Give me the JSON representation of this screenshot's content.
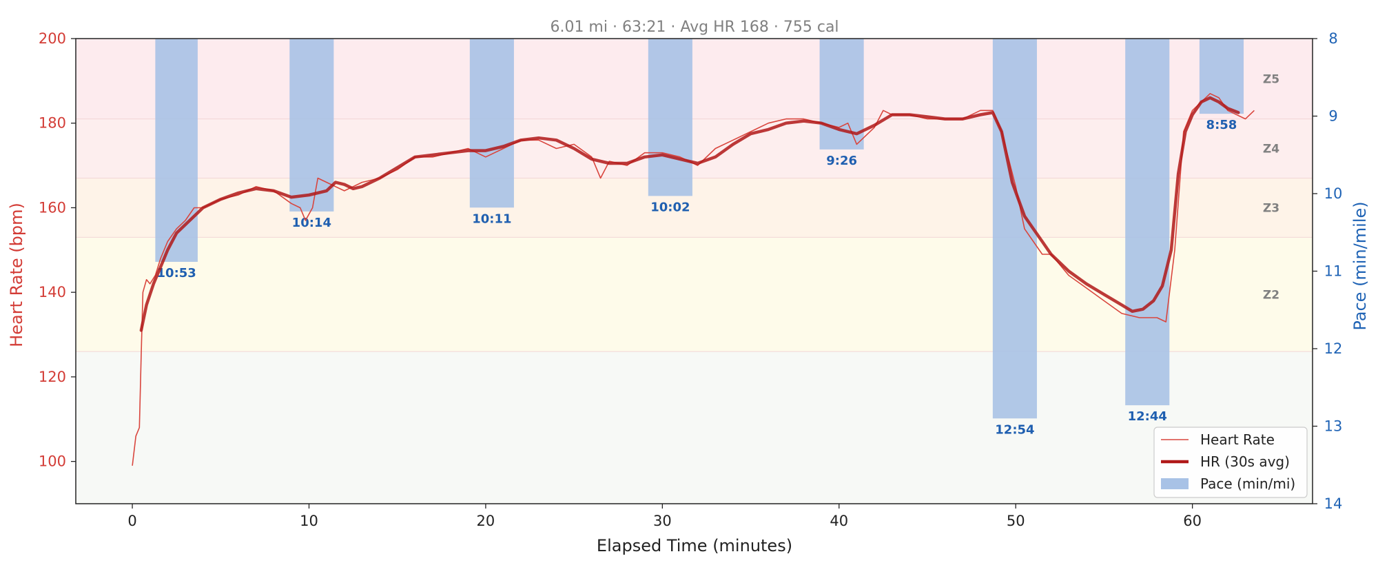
{
  "subtitle": "6.01 mi  ·  63:21  ·  Avg HR 168  ·  755 cal",
  "colors": {
    "hr_raw": "#d9453d",
    "hr_avg": "#b01818",
    "pace_bar": "#a8c2e6",
    "left_axis": "#d33c36",
    "right_axis": "#1f63b5",
    "pace_label": "#1f5fb0"
  },
  "chart_data": {
    "type": "line",
    "xlabel": "Elapsed Time (minutes)",
    "ylabel": "Heart Rate (bpm)",
    "y2label": "Pace (min/mile)",
    "xlim": [
      -3.2,
      66.8
    ],
    "ylim": [
      90,
      200
    ],
    "y2lim": [
      14,
      8
    ],
    "x_ticks": [
      0,
      10,
      20,
      30,
      40,
      50,
      60
    ],
    "y_ticks": [
      100,
      120,
      140,
      160,
      180,
      200
    ],
    "y2_ticks": [
      8,
      9,
      10,
      11,
      12,
      13,
      14
    ],
    "zones": [
      {
        "name": "",
        "from": 90,
        "to": 126,
        "color": "#f7f9f6"
      },
      {
        "name": "Z2",
        "from": 126,
        "to": 153,
        "color": "#fefbea"
      },
      {
        "name": "Z3",
        "from": 153,
        "to": 167,
        "color": "#fef3e8"
      },
      {
        "name": "Z4",
        "from": 167,
        "to": 181,
        "color": "#fdeeee"
      },
      {
        "name": "Z5",
        "from": 181,
        "to": 200,
        "color": "#fdebee"
      }
    ],
    "pace_bars": [
      {
        "x0": 1.3,
        "x1": 3.7,
        "pace": 10.88,
        "label": "10:53"
      },
      {
        "x0": 8.9,
        "x1": 11.4,
        "pace": 10.23,
        "label": "10:14"
      },
      {
        "x0": 19.1,
        "x1": 21.6,
        "pace": 10.18,
        "label": "10:11"
      },
      {
        "x0": 29.2,
        "x1": 31.7,
        "pace": 10.03,
        "label": "10:02"
      },
      {
        "x0": 38.9,
        "x1": 41.4,
        "pace": 9.43,
        "label": "9:26"
      },
      {
        "x0": 48.7,
        "x1": 51.2,
        "pace": 12.9,
        "label": "12:54"
      },
      {
        "x0": 56.2,
        "x1": 58.7,
        "pace": 12.73,
        "label": "12:44"
      },
      {
        "x0": 60.4,
        "x1": 62.9,
        "pace": 8.97,
        "label": "8:58"
      }
    ],
    "series": [
      {
        "name": "Heart Rate",
        "x": [
          0,
          0.2,
          0.4,
          0.5,
          0.6,
          0.8,
          1.0,
          1.3,
          1.6,
          2.0,
          2.5,
          3.0,
          3.5,
          4.0,
          5.0,
          6.0,
          7.0,
          8.0,
          9.0,
          9.5,
          9.8,
          10.2,
          10.5,
          11.0,
          11.5,
          12.0,
          13.0,
          14.0,
          15.0,
          16.0,
          17.0,
          18.0,
          19.0,
          20.0,
          21.0,
          22.0,
          23.0,
          24.0,
          25.0,
          26.0,
          26.5,
          27.0,
          28.0,
          29.0,
          30.0,
          31.0,
          32.0,
          33.0,
          34.0,
          35.0,
          36.0,
          37.0,
          38.0,
          39.0,
          40.0,
          40.5,
          41.0,
          42.0,
          42.5,
          43.0,
          44.0,
          45.0,
          46.0,
          47.0,
          48.0,
          48.7,
          49.2,
          50.0,
          50.5,
          51.0,
          51.5,
          52.0,
          53.0,
          54.0,
          55.0,
          56.0,
          57.0,
          58.0,
          58.5,
          59.0,
          59.5,
          60.0,
          60.5,
          61.0,
          61.5,
          62.0,
          63.0,
          63.5
        ],
        "values": [
          99,
          106,
          108,
          125,
          140,
          143,
          142,
          144,
          148,
          152,
          155,
          157,
          160,
          160,
          162,
          163,
          165,
          164,
          161,
          160,
          157,
          160,
          167,
          166,
          165,
          164,
          166,
          167,
          169,
          172,
          172,
          173,
          174,
          172,
          174,
          176,
          176,
          174,
          175,
          172,
          167,
          171,
          170,
          173,
          173,
          172,
          170,
          174,
          176,
          178,
          180,
          181,
          181,
          180,
          179,
          180,
          175,
          179,
          183,
          182,
          182,
          181,
          181,
          181,
          183,
          183,
          178,
          165,
          155,
          152,
          149,
          149,
          144,
          141,
          138,
          135,
          134,
          134,
          133,
          150,
          178,
          183,
          185,
          187,
          186,
          183,
          181,
          183
        ]
      },
      {
        "name": "HR (30s avg)",
        "x": [
          0.5,
          0.8,
          1.2,
          1.6,
          2.0,
          2.5,
          3.0,
          3.5,
          4.0,
          5.0,
          6.0,
          7.0,
          8.0,
          9.0,
          10.0,
          11.0,
          11.5,
          12.0,
          12.5,
          13.0,
          14.0,
          15.0,
          16.0,
          17.0,
          18.0,
          19.0,
          20.0,
          21.0,
          22.0,
          23.0,
          24.0,
          25.0,
          26.0,
          27.0,
          28.0,
          29.0,
          30.0,
          31.0,
          32.0,
          33.0,
          34.0,
          35.0,
          36.0,
          37.0,
          38.0,
          39.0,
          40.0,
          41.0,
          42.0,
          43.0,
          44.0,
          45.0,
          46.0,
          47.0,
          48.0,
          48.7,
          49.2,
          49.8,
          50.5,
          51.0,
          51.5,
          52.0,
          53.0,
          54.0,
          55.0,
          56.0,
          56.6,
          57.2,
          57.8,
          58.3,
          58.8,
          59.2,
          59.6,
          60.0,
          60.5,
          61.0,
          61.5,
          62.0,
          62.6
        ],
        "values": [
          131,
          137,
          142,
          146,
          150,
          154,
          156,
          158,
          160,
          162,
          163.5,
          164.5,
          164,
          162.5,
          163,
          164,
          166,
          165.5,
          164.5,
          165,
          167,
          169.5,
          172,
          172.5,
          173,
          173.5,
          173.5,
          174.5,
          176,
          176.5,
          176,
          174,
          171.5,
          170.5,
          170.5,
          172,
          172.5,
          171.5,
          170.5,
          172,
          175,
          177.5,
          178.5,
          180,
          180.5,
          180,
          178.5,
          177.5,
          179.5,
          182,
          182,
          181.5,
          181,
          181,
          182,
          182.5,
          178,
          166,
          158,
          155,
          152,
          149,
          145,
          142,
          139.5,
          137,
          135.5,
          136,
          138,
          141.5,
          150,
          168,
          178,
          182,
          185,
          186,
          185,
          183.5,
          182.5
        ]
      }
    ],
    "legend": {
      "placement": "bottom-right",
      "entries": [
        "Heart Rate",
        "HR (30s avg)",
        "Pace (min/mi)"
      ]
    }
  }
}
